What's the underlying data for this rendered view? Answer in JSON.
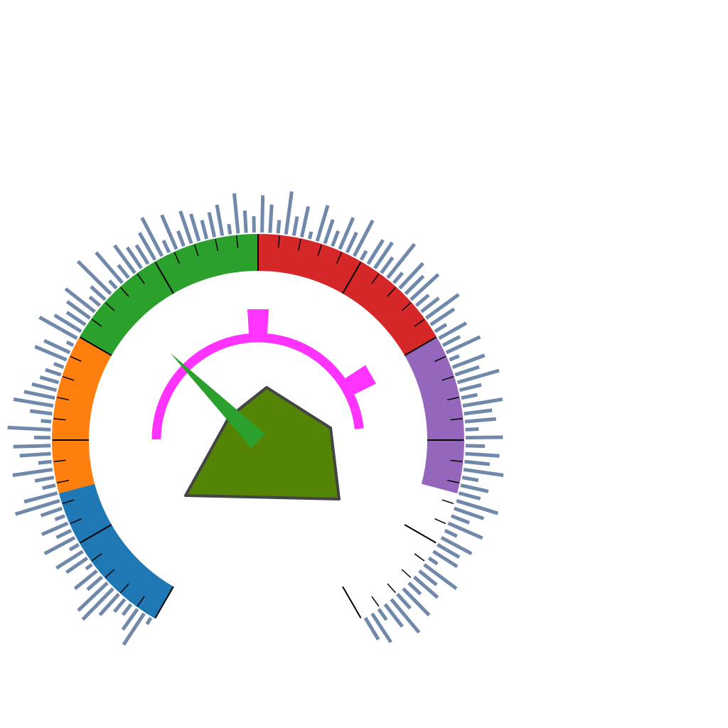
{
  "chart_data": {
    "type": "gauge",
    "title": "",
    "scale": {
      "min": 0,
      "max": 100,
      "major_step": 10,
      "minor_step": 2
    },
    "bands": [
      {
        "from": 0,
        "to": 15,
        "color": "#1f77b4"
      },
      {
        "from": 15,
        "to": 30,
        "color": "#ff7f0e"
      },
      {
        "from": 30,
        "to": 50,
        "color": "#2ca02c"
      },
      {
        "from": 50,
        "to": 70,
        "color": "#d62728"
      },
      {
        "from": 70,
        "to": 85,
        "color": "#9467bd"
      }
    ],
    "needle": {
      "value": 35,
      "color": "#2ca02c"
    },
    "inner_range_arc": {
      "from": 20,
      "to": 78,
      "color": "#ff33ff",
      "markers": [
        50,
        70
      ]
    },
    "spectrum_bars": {
      "color": "#7088aa",
      "values": [
        2,
        12,
        8,
        4,
        5,
        9,
        14,
        13,
        6,
        9,
        2,
        8,
        10,
        3,
        11,
        5,
        9,
        3,
        7,
        15,
        11,
        4,
        6,
        13,
        4,
        10,
        12,
        5,
        14,
        3,
        7,
        13,
        10,
        8,
        6,
        5,
        3,
        11,
        9,
        2,
        14,
        10,
        7,
        9,
        12,
        4,
        6,
        15,
        3,
        13,
        5,
        11,
        8,
        7,
        10,
        14,
        4,
        12,
        5,
        11,
        9,
        6,
        8,
        10,
        3,
        13,
        7,
        5,
        12,
        9,
        4,
        14,
        6,
        10,
        2,
        12,
        8,
        5,
        11,
        7,
        13,
        3,
        9,
        10,
        6,
        14,
        4,
        11,
        8,
        12,
        5,
        7,
        13,
        9,
        4,
        10,
        6,
        12,
        3,
        11,
        8,
        14,
        7,
        5,
        13,
        9,
        10,
        4,
        12,
        6,
        11,
        8,
        13,
        5,
        9,
        7,
        14,
        10,
        6,
        12,
        4,
        11,
        8,
        9,
        3,
        13,
        7,
        10,
        5,
        12,
        6,
        14,
        9,
        4,
        11,
        8
      ]
    },
    "center_polygon": {
      "color": "#548404",
      "stroke": "#444444"
    }
  }
}
